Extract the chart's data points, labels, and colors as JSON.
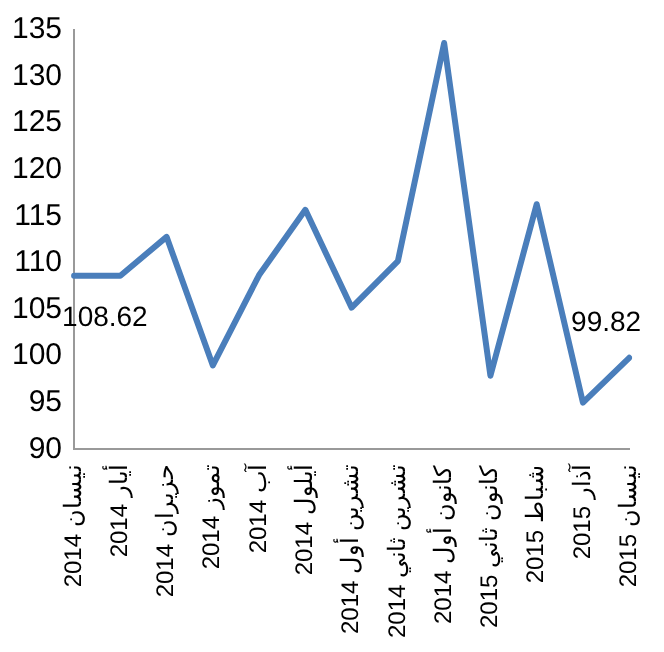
{
  "chart_data": {
    "type": "line",
    "categories": [
      "نيسان 2014",
      "أيار 2014",
      "حزيران 2014",
      "تموز 2014",
      "آب 2014",
      "أيلول 2014",
      "تشرين أول 2014",
      "تشرين ثاني 2014",
      "كانون أول 2014",
      "كانون ثاني 2015",
      "شباط 2015",
      "آذار 2015",
      "نيسان 2015"
    ],
    "series": [
      {
        "color": "#4a7ebb",
        "values": [
          108.62,
          108.62,
          112.8,
          99.0,
          108.7,
          115.7,
          105.2,
          110.2,
          133.6,
          97.9,
          116.3,
          95.0,
          99.82
        ],
        "value_labels": [
          "108.62",
          null,
          null,
          null,
          null,
          null,
          null,
          null,
          null,
          null,
          null,
          null,
          "99.82"
        ]
      }
    ],
    "ylim": [
      90,
      135
    ],
    "yticks": [
      90,
      95,
      100,
      105,
      110,
      115,
      120,
      125,
      130,
      135
    ],
    "grid": false,
    "legend": false,
    "marker": "none",
    "line_style": "solid"
  }
}
